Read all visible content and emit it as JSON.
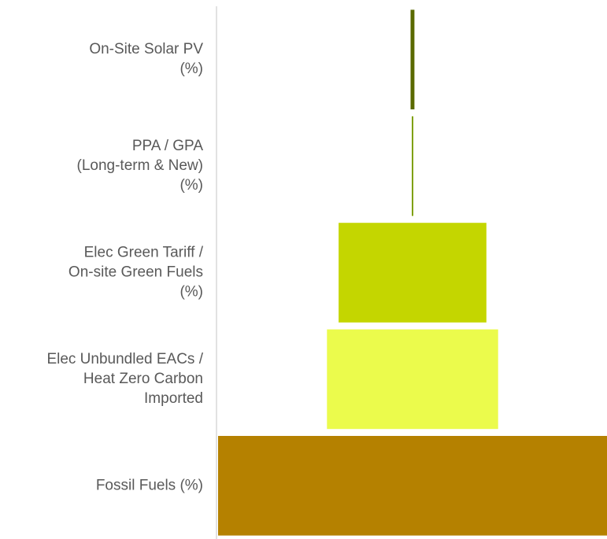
{
  "chart_data": {
    "type": "bar",
    "orientation": "horizontal",
    "layout": "centered-funnel",
    "title": "",
    "xlabel": "",
    "ylabel": "",
    "grid": false,
    "legend": "none",
    "categories": [
      [
        "On-Site Solar PV",
        "(%)"
      ],
      [
        "PPA / GPA",
        "(Long-term & New)",
        "(%)"
      ],
      [
        "Elec Green Tariff /",
        "On-site Green Fuels",
        "(%)"
      ],
      [
        "Elec Unbundled EACs /",
        "Heat Zero Carbon",
        "Imported"
      ],
      [
        "Fossil Fuels (%)"
      ]
    ],
    "values": [
      1,
      0.2,
      38,
      44,
      100
    ],
    "value_unit": "%",
    "colors": [
      "#5a6a00",
      "#7fa000",
      "#c4d600",
      "#ebfb4c",
      "#b58100"
    ],
    "axis_color": "#d9d9d9"
  }
}
